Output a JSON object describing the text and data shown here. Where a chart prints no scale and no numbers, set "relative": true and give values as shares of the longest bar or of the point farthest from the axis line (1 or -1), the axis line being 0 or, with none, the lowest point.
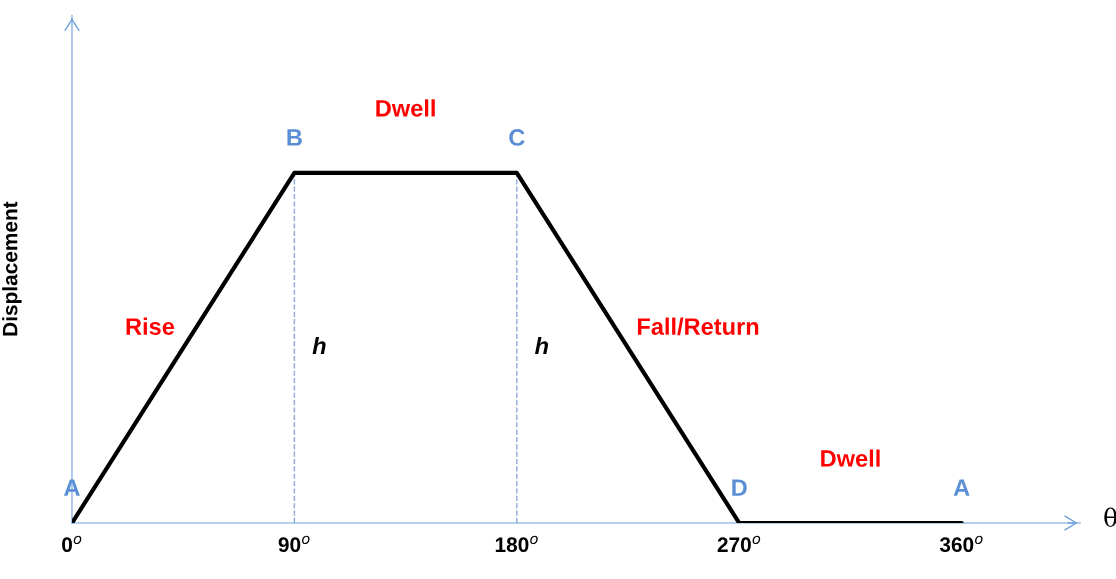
{
  "chart_data": {
    "type": "line",
    "relative": true,
    "xlabel": "θ",
    "ylabel": "Displacement",
    "x": [
      0,
      90,
      180,
      270,
      360
    ],
    "xlim": [
      0,
      408
    ],
    "xticks": [
      {
        "value": 0,
        "label": "0$^{o}$"
      },
      {
        "value": 90,
        "label": "90$^{o}$"
      },
      {
        "value": 180,
        "label": "180$^{o}$"
      },
      {
        "value": 270,
        "label": "270$^{o}$"
      },
      {
        "value": 360,
        "label": "360$^{o}$"
      }
    ],
    "series": [
      {
        "color": "#000000",
        "values": [
          0,
          1,
          1,
          0,
          0
        ]
      }
    ],
    "marker": "none",
    "line_style": "solid",
    "ref_lines": [
      {
        "axis": "x",
        "value": 90,
        "color": "#8eaadb",
        "line_style": "dashed"
      },
      {
        "axis": "x",
        "value": 180,
        "color": "#8eaadb",
        "line_style": "dashed"
      }
    ],
    "annotations": [
      {
        "text": "A",
        "x": 0,
        "y": 0
      },
      {
        "text": "B",
        "x": 90,
        "y": 1
      },
      {
        "text": "Dwell",
        "x": 135,
        "y": 1
      },
      {
        "text": "C",
        "x": 180,
        "y": 1
      },
      {
        "text": "Rise",
        "x": 45,
        "y": 0.5
      },
      {
        "text": "h",
        "x": 90,
        "y": 0.5
      },
      {
        "text": "h",
        "x": 180,
        "y": 0.5
      },
      {
        "text": "Fall/Return",
        "x": 225,
        "y": 0.5
      },
      {
        "text": "D",
        "x": 270,
        "y": 0
      },
      {
        "text": "Dwell",
        "x": 315,
        "y": 0
      },
      {
        "text": "A",
        "x": 360,
        "y": 0
      }
    ]
  }
}
